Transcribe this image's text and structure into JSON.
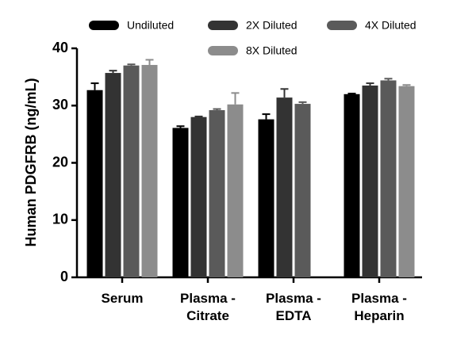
{
  "chart_data": {
    "type": "bar",
    "y_label": "Human PDGFRB (ng/mL)",
    "categories": [
      "Serum",
      "Plasma - Citrate",
      "Plasma - EDTA",
      "Plasma - Heparin"
    ],
    "series": [
      {
        "name": "Undiluted",
        "color": "#000000",
        "values": [
          32.7,
          26.1,
          27.6,
          32.0
        ],
        "errors": [
          1.2,
          0.3,
          0.9,
          0.1
        ]
      },
      {
        "name": "2X Diluted",
        "color": "#333333",
        "values": [
          35.7,
          28.0,
          31.4,
          33.5
        ],
        "errors": [
          0.4,
          0.1,
          1.5,
          0.4
        ]
      },
      {
        "name": "4X Diluted",
        "color": "#5a5a5a",
        "values": [
          37.0,
          29.2,
          30.3,
          34.4
        ],
        "errors": [
          0.2,
          0.2,
          0.3,
          0.3
        ]
      },
      {
        "name": "8X Diluted",
        "color": "#8c8c8c",
        "values": [
          37.1,
          30.2,
          null,
          33.4
        ],
        "errors": [
          0.9,
          2.0,
          null,
          0.2
        ]
      }
    ],
    "ylim": [
      0,
      40
    ],
    "yticks": [
      0,
      10,
      20,
      30,
      40
    ],
    "grid": false
  }
}
